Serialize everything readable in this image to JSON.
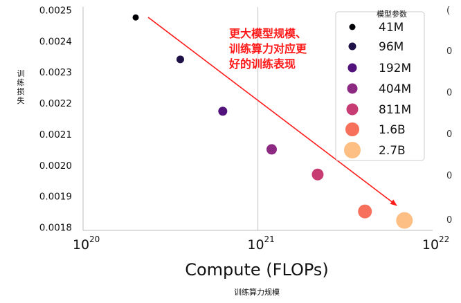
{
  "chart_data": {
    "type": "scatter",
    "title": "",
    "xlabel": "Compute (FLOPs)",
    "xlabel_sub": "训练算力规模",
    "ylabel": "训练损失",
    "x_scale": "log",
    "xlim": [
      1e+20,
      1e+22
    ],
    "ylim": [
      0.00179,
      0.00251
    ],
    "x_ticks": [
      {
        "base": "10",
        "exp": "20",
        "value": 1e+20
      },
      {
        "base": "10",
        "exp": "21",
        "value": 1e+21
      },
      {
        "base": "10",
        "exp": "22",
        "value": 1e+22
      }
    ],
    "y_ticks": [
      "0.0018",
      "0.0019",
      "0.0020",
      "0.0021",
      "0.0022",
      "0.0023",
      "0.0024",
      "0.0025"
    ],
    "grid": "x-major",
    "legend": {
      "title": "模型参数",
      "placement": "top-right",
      "entries": [
        "41M",
        "96M",
        "192M",
        "404M",
        "811M",
        "1.6B",
        "2.7B"
      ]
    },
    "series": [
      {
        "name": "41M",
        "x": 2e+20,
        "y": 0.002476,
        "color": "#000004"
      },
      {
        "name": "96M",
        "x": 3.6e+20,
        "y": 0.002341,
        "color": "#1d1147"
      },
      {
        "name": "192M",
        "x": 6.3e+20,
        "y": 0.002174,
        "color": "#51127c"
      },
      {
        "name": "404M",
        "x": 1.2e+21,
        "y": 0.002051,
        "color": "#8c2981"
      },
      {
        "name": "811M",
        "x": 2.2e+21,
        "y": 0.00197,
        "color": "#c73d73"
      },
      {
        "name": "1.6B",
        "x": 4.1e+21,
        "y": 0.001851,
        "color": "#f7705c"
      },
      {
        "name": "2.7B",
        "x": 6.9e+21,
        "y": 0.001822,
        "color": "#fdbf84"
      }
    ],
    "annotation": {
      "lines": [
        "更大模型规模、",
        "训练算力对应更",
        "好的训练表现"
      ],
      "color": "#ff1a1a"
    }
  },
  "right_edge_fragments": [
    "(",
    "0",
    "0",
    "0",
    "0",
    "0"
  ]
}
